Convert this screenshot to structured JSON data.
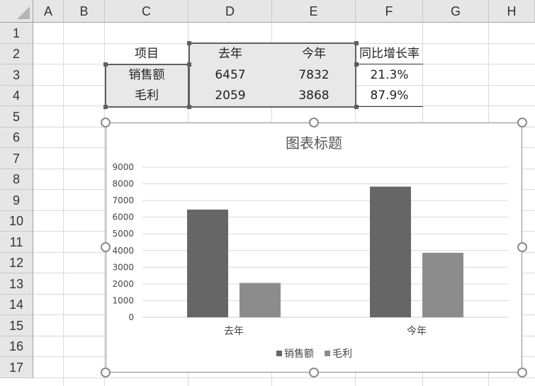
{
  "sheet": {
    "columns": [
      "A",
      "B",
      "C",
      "D",
      "E",
      "F",
      "G",
      "H"
    ],
    "rows": [
      "1",
      "2",
      "3",
      "4",
      "5",
      "6",
      "7",
      "8",
      "9",
      "10",
      "11",
      "12",
      "13",
      "14",
      "15",
      "16",
      "17"
    ]
  },
  "table": {
    "header": [
      "项目",
      "去年",
      "今年",
      "同比增长率"
    ],
    "rows": [
      [
        "销售额",
        "6457",
        "7832",
        "21.3%"
      ],
      [
        "毛利",
        "2059",
        "3868",
        "87.9%"
      ]
    ]
  },
  "chart_data": {
    "type": "bar",
    "title": "图表标题",
    "categories": [
      "去年",
      "今年"
    ],
    "series": [
      {
        "name": "销售额",
        "values": [
          6457,
          7832
        ],
        "color": "#666666"
      },
      {
        "name": "毛利",
        "values": [
          2059,
          3868
        ],
        "color": "#8c8c8c"
      }
    ],
    "yticks": [
      "0",
      "1000",
      "2000",
      "3000",
      "4000",
      "5000",
      "6000",
      "7000",
      "8000",
      "9000"
    ],
    "ylim": [
      0,
      9000
    ],
    "grid": true,
    "legend": "bottom"
  }
}
